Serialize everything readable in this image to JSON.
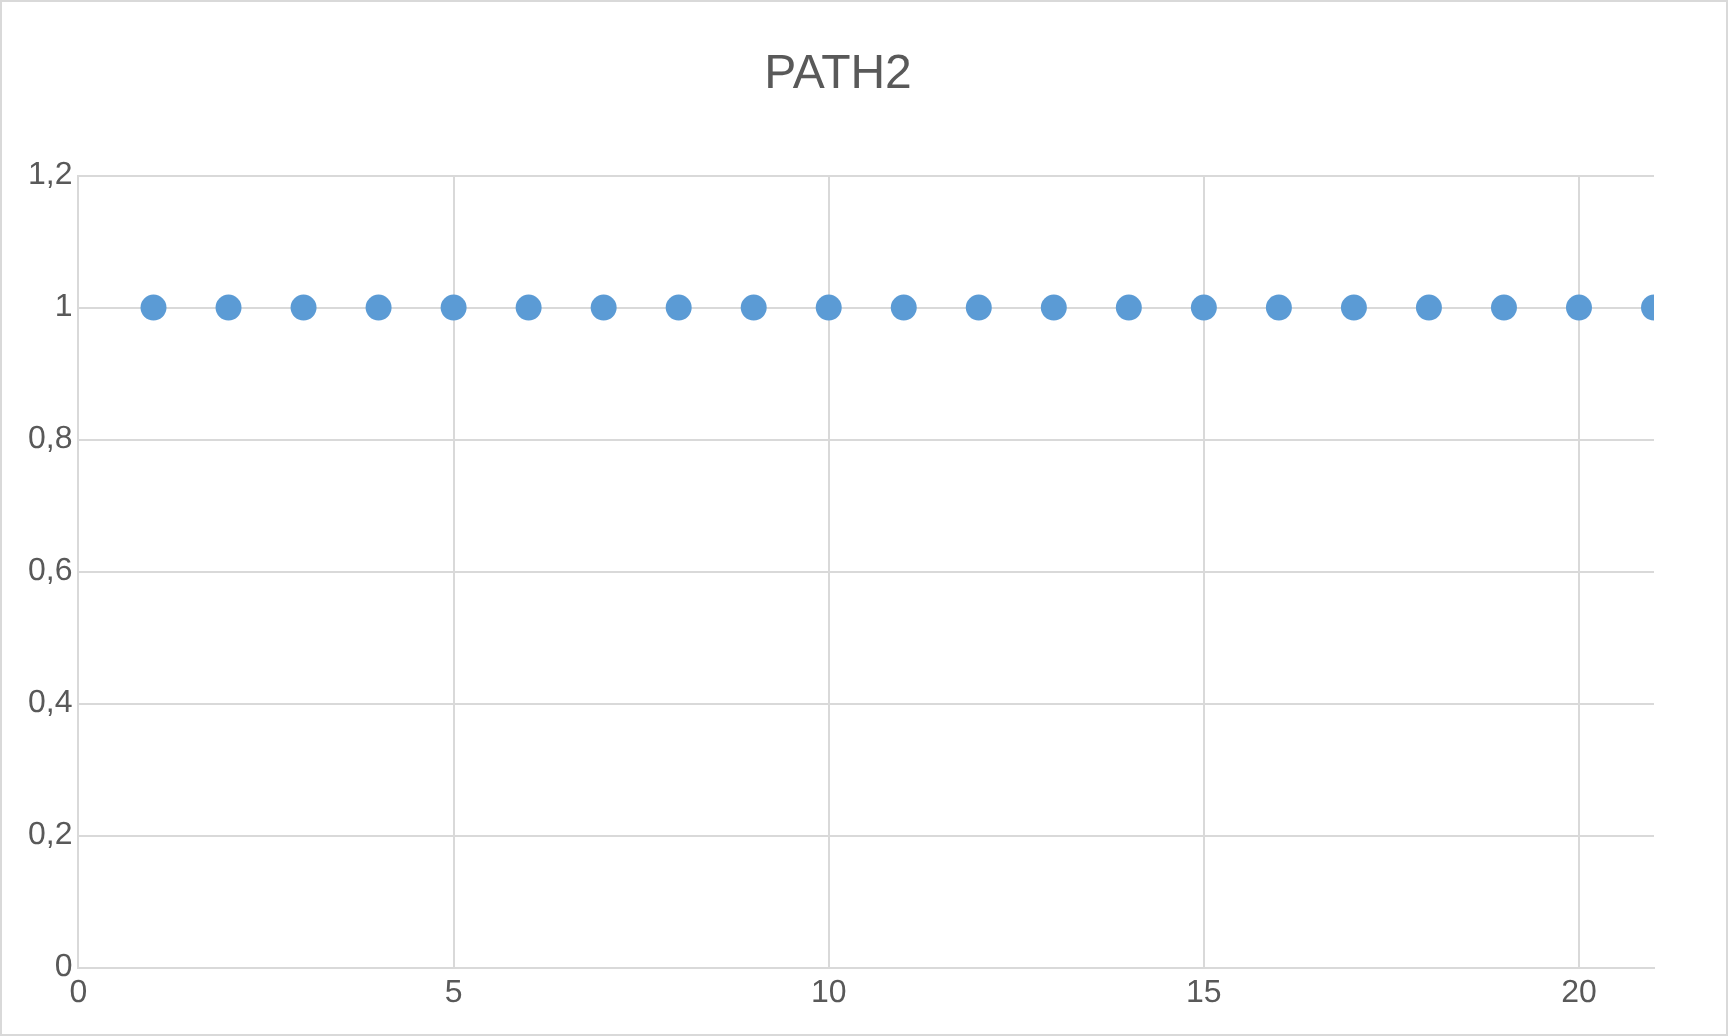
{
  "chart_data": {
    "type": "scatter",
    "title": "PATH2",
    "x": [
      1,
      2,
      3,
      4,
      5,
      6,
      7,
      8,
      9,
      10,
      11,
      12,
      13,
      14,
      15,
      16,
      17,
      18,
      19,
      20,
      21
    ],
    "series": [
      {
        "color": "#5b9bd5",
        "values": [
          1,
          1,
          1,
          1,
          1,
          1,
          1,
          1,
          1,
          1,
          1,
          1,
          1,
          1,
          1,
          1,
          1,
          1,
          1,
          1,
          1
        ]
      }
    ],
    "xlim": [
      0,
      21
    ],
    "xticks": [
      0,
      5,
      10,
      15,
      20
    ],
    "ylim": [
      0,
      1.2
    ],
    "yticks": [
      0,
      {
        "value": 0.2,
        "label": "0,2"
      },
      {
        "value": 0.4,
        "label": "0,4"
      },
      {
        "value": 0.6,
        "label": "0,6"
      },
      {
        "value": 0.8,
        "label": "0,8"
      },
      1,
      {
        "value": 1.2,
        "label": "1,2"
      }
    ],
    "grid": true,
    "legend": false,
    "marker": "circle"
  }
}
